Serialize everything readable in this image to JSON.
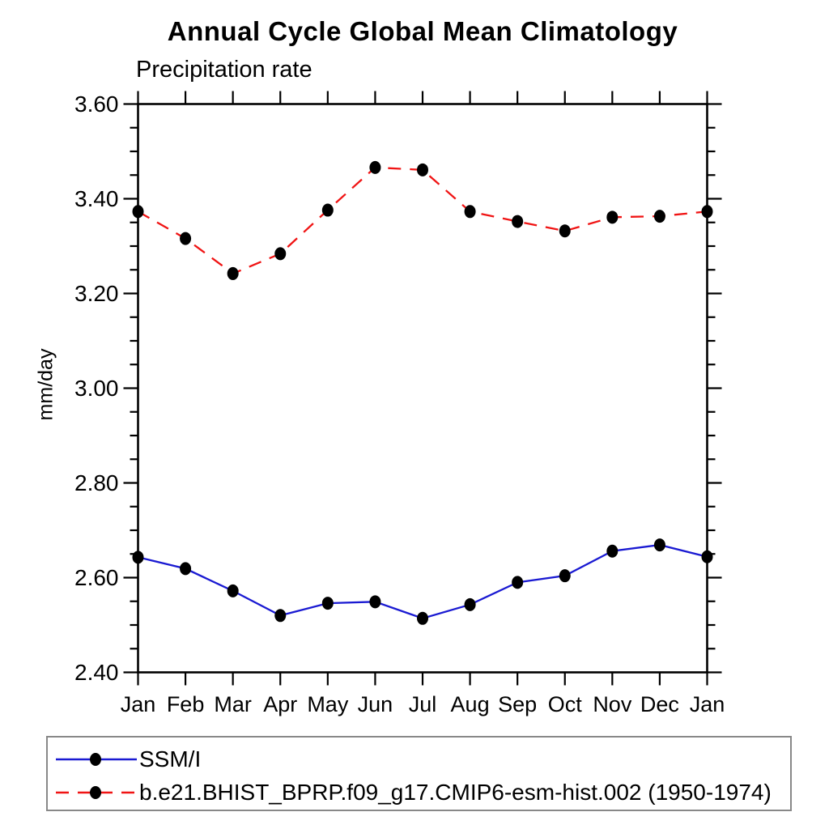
{
  "page": {
    "background_color": "#ffffff",
    "axis_color": "#000000",
    "legend_border_color": "#888888"
  },
  "chart_data": {
    "type": "line",
    "title": "Annual Cycle Global Mean Climatology",
    "subtitle": "Precipitation rate",
    "xlabel": "",
    "ylabel": "mm/day",
    "x_tick_labels": [
      "Jan",
      "Feb",
      "Mar",
      "Apr",
      "May",
      "Jun",
      "Jul",
      "Aug",
      "Sep",
      "Oct",
      "Nov",
      "Dec",
      "Jan"
    ],
    "ylim": [
      2.4,
      3.6
    ],
    "y_major_tick_labels": [
      "3.60",
      "3.40",
      "3.20",
      "3.00",
      "2.80",
      "2.60",
      "2.40"
    ],
    "y_major_tick_values": [
      3.6,
      3.4,
      3.2,
      3.0,
      2.8,
      2.6,
      2.4
    ],
    "y_minor_step": 0.05,
    "grid": false,
    "legend_position": "bottom-left",
    "marker": "filled-circle",
    "marker_color": "#000000",
    "series": [
      {
        "name": "SSM/I",
        "color": "#1a1ad2",
        "line_style": "solid",
        "values": [
          2.643,
          2.619,
          2.572,
          2.52,
          2.546,
          2.549,
          2.514,
          2.543,
          2.59,
          2.604,
          2.656,
          2.669,
          2.644
        ]
      },
      {
        "name": "b.e21.BHIST_BPRP.f09_g17.CMIP6-esm-hist.002 (1950-1974)",
        "color": "#f01414",
        "line_style": "dashed",
        "values": [
          3.373,
          3.316,
          3.242,
          3.284,
          3.376,
          3.466,
          3.461,
          3.373,
          3.352,
          3.332,
          3.361,
          3.363,
          3.373
        ]
      }
    ]
  }
}
